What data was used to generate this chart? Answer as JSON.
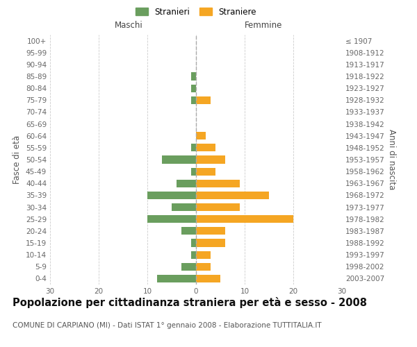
{
  "age_groups": [
    "100+",
    "95-99",
    "90-94",
    "85-89",
    "80-84",
    "75-79",
    "70-74",
    "65-69",
    "60-64",
    "55-59",
    "50-54",
    "45-49",
    "40-44",
    "35-39",
    "30-34",
    "25-29",
    "20-24",
    "15-19",
    "10-14",
    "5-9",
    "0-4"
  ],
  "birth_years": [
    "≤ 1907",
    "1908-1912",
    "1913-1917",
    "1918-1922",
    "1923-1927",
    "1928-1932",
    "1933-1937",
    "1938-1942",
    "1943-1947",
    "1948-1952",
    "1953-1957",
    "1958-1962",
    "1963-1967",
    "1968-1972",
    "1973-1977",
    "1978-1982",
    "1983-1987",
    "1988-1992",
    "1993-1997",
    "1998-2002",
    "2003-2007"
  ],
  "males": [
    0,
    0,
    0,
    1,
    1,
    1,
    0,
    0,
    0,
    1,
    7,
    1,
    4,
    10,
    5,
    10,
    3,
    1,
    1,
    3,
    8
  ],
  "females": [
    0,
    0,
    0,
    0,
    0,
    3,
    0,
    0,
    2,
    4,
    6,
    4,
    9,
    15,
    9,
    20,
    6,
    6,
    3,
    3,
    5
  ],
  "male_color": "#6a9e5e",
  "female_color": "#f5a623",
  "background_color": "#ffffff",
  "grid_color": "#cccccc",
  "xlabel_left": "Maschi",
  "xlabel_right": "Femmine",
  "ylabel_left": "Fasce di età",
  "ylabel_right": "Anni di nascita",
  "xlim": 30,
  "title": "Popolazione per cittadinanza straniera per età e sesso - 2008",
  "subtitle": "COMUNE DI CARPIANO (MI) - Dati ISTAT 1° gennaio 2008 - Elaborazione TUTTITALIA.IT",
  "legend_stranieri": "Stranieri",
  "legend_straniere": "Straniere",
  "title_fontsize": 10.5,
  "subtitle_fontsize": 7.5,
  "tick_fontsize": 7.5,
  "label_fontsize": 8.5
}
